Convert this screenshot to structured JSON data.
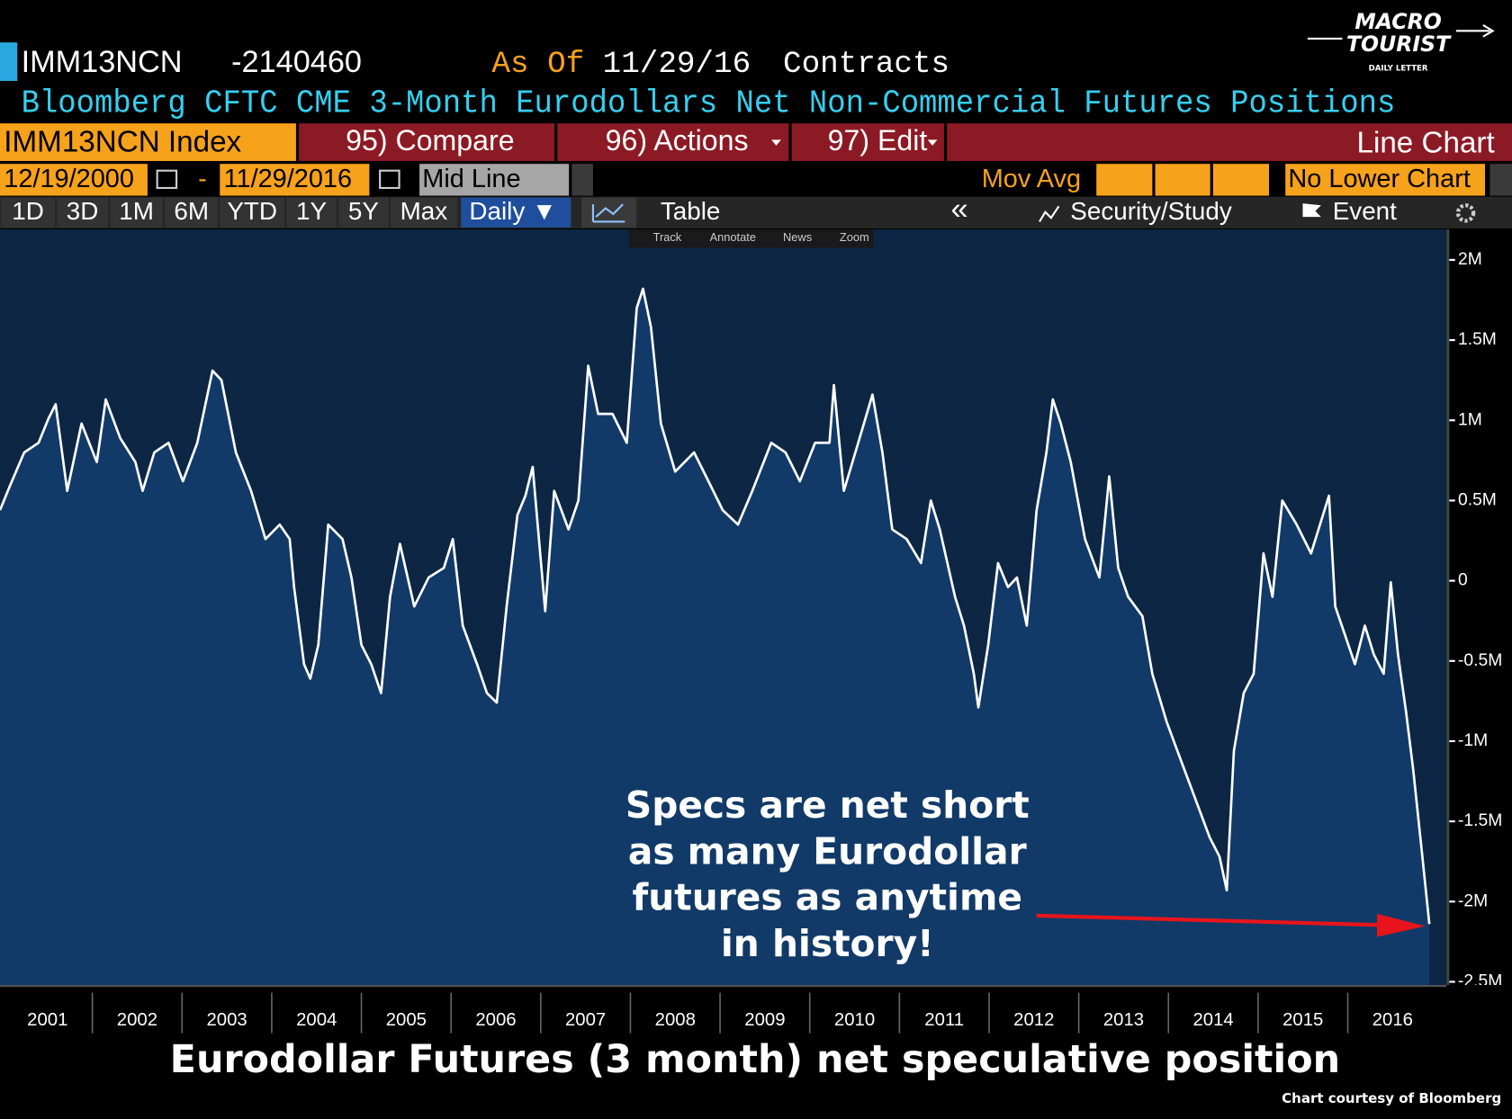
{
  "ui": {
    "logo": {
      "line1": "MACRO",
      "line2": "TOURIST",
      "line3": "DAILY LETTER"
    },
    "header": {
      "ticker": "IMM13NCN",
      "value": -2140460,
      "as_of_label": "As Of",
      "as_of": "11/29/16",
      "units": "Contracts",
      "description": "Bloomberg CFTC CME 3-Month Eurodollars Net Non-Commercial Futures Positions"
    },
    "menu": {
      "security": "IMM13NCN Index",
      "compare": "95) Compare",
      "actions": "96) Actions",
      "edit": "97) Edit",
      "chart_type": "Line Chart"
    },
    "range": {
      "start": "12/19/2000",
      "separator": "-",
      "end": "11/29/2016",
      "mode": "Mid Line",
      "mov_avg": "Mov Avg",
      "lower": "No Lower Chart"
    },
    "periods": [
      "1D",
      "3D",
      "1M",
      "6M",
      "YTD",
      "1Y",
      "5Y",
      "Max"
    ],
    "frequency": "Daily ▼",
    "table": "Table",
    "collapse": "«",
    "study": "Security/Study",
    "event": "Event",
    "tools": [
      "Track",
      "Annotate",
      "News",
      "Zoom"
    ]
  },
  "chart_data": {
    "type": "line",
    "title": "Eurodollar Futures (3 month) net speculative position",
    "annotation": [
      "Specs are net short",
      "as many Eurodollar",
      "futures as anytime",
      "in history!"
    ],
    "source": "Chart courtesy of Bloomberg",
    "xlim": [
      2000.97,
      2017.1
    ],
    "xticks": [
      2001,
      2002,
      2003,
      2004,
      2005,
      2006,
      2007,
      2008,
      2009,
      2010,
      2011,
      2012,
      2013,
      2014,
      2015,
      2016
    ],
    "ylim": [
      -2520000,
      2190000
    ],
    "yticks": [
      {
        "value": 2000000,
        "label": "2M"
      },
      {
        "value": 1500000,
        "label": "1.5M"
      },
      {
        "value": 1000000,
        "label": "1M"
      },
      {
        "value": 500000,
        "label": "0.5M"
      },
      0,
      {
        "value": -500000,
        "label": "-0.5M"
      },
      {
        "value": -1000000,
        "label": "-1M"
      },
      {
        "value": -1500000,
        "label": "-1.5M"
      },
      {
        "value": -2000000,
        "label": "-2M"
      },
      {
        "value": -2500000,
        "label": "-2.5M"
      }
    ],
    "series": [
      {
        "color": "#ffffff",
        "fill": "#113a68",
        "x": [
          2000.97,
          2001.08,
          2001.24,
          2001.4,
          2001.51,
          2001.59,
          2001.72,
          2001.88,
          2002.05,
          2002.15,
          2002.31,
          2002.48,
          2002.56,
          2002.69,
          2002.85,
          2003.01,
          2003.17,
          2003.34,
          2003.44,
          2003.6,
          2003.77,
          2003.93,
          2004.09,
          2004.2,
          2004.25,
          2004.36,
          2004.43,
          2004.52,
          2004.63,
          2004.79,
          2004.89,
          2005.0,
          2005.11,
          2005.22,
          2005.32,
          2005.43,
          2005.59,
          2005.75,
          2005.92,
          2006.02,
          2006.13,
          2006.29,
          2006.4,
          2006.51,
          2006.62,
          2006.74,
          2006.83,
          2006.91,
          2007.05,
          2007.15,
          2007.31,
          2007.42,
          2007.53,
          2007.64,
          2007.8,
          2007.96,
          2008.07,
          2008.14,
          2008.23,
          2008.34,
          2008.5,
          2008.71,
          2008.87,
          2009.03,
          2009.2,
          2009.36,
          2009.57,
          2009.73,
          2009.89,
          2010.06,
          2010.22,
          2010.27,
          2010.38,
          2010.54,
          2010.7,
          2010.81,
          2010.92,
          2011.08,
          2011.24,
          2011.35,
          2011.45,
          2011.62,
          2011.72,
          2011.83,
          2011.88,
          2011.99,
          2012.1,
          2012.21,
          2012.31,
          2012.42,
          2012.53,
          2012.64,
          2012.71,
          2012.8,
          2012.91,
          2013.07,
          2013.23,
          2013.34,
          2013.44,
          2013.55,
          2013.71,
          2013.82,
          2013.98,
          2014.14,
          2014.3,
          2014.46,
          2014.57,
          2014.65,
          2014.73,
          2014.84,
          2014.95,
          2015.06,
          2015.16,
          2015.27,
          2015.43,
          2015.59,
          2015.79,
          2015.86,
          2015.97,
          2016.08,
          2016.19,
          2016.29,
          2016.4,
          2016.48,
          2016.56,
          2016.65,
          2016.73,
          2016.82,
          2016.91
        ],
        "values": [
          440000,
          590000,
          800000,
          860000,
          1010000,
          1100000,
          560000,
          980000,
          740000,
          1130000,
          890000,
          740000,
          560000,
          800000,
          860000,
          620000,
          860000,
          1310000,
          1250000,
          800000,
          560000,
          260000,
          350000,
          260000,
          -40000,
          -520000,
          -610000,
          -400000,
          350000,
          260000,
          20000,
          -400000,
          -520000,
          -700000,
          -100000,
          230000,
          -160000,
          20000,
          80000,
          260000,
          -280000,
          -520000,
          -700000,
          -760000,
          -160000,
          410000,
          530000,
          710000,
          -190000,
          560000,
          320000,
          500000,
          1340000,
          1040000,
          1040000,
          860000,
          1700000,
          1820000,
          1580000,
          980000,
          680000,
          800000,
          620000,
          440000,
          350000,
          560000,
          860000,
          800000,
          620000,
          860000,
          860000,
          1220000,
          560000,
          860000,
          1160000,
          800000,
          320000,
          260000,
          110000,
          500000,
          320000,
          -100000,
          -280000,
          -580000,
          -790000,
          -400000,
          110000,
          -40000,
          20000,
          -280000,
          440000,
          800000,
          1130000,
          980000,
          740000,
          260000,
          20000,
          650000,
          80000,
          -100000,
          -220000,
          -580000,
          -880000,
          -1120000,
          -1360000,
          -1600000,
          -1720000,
          -1930000,
          -1060000,
          -700000,
          -580000,
          170000,
          -100000,
          500000,
          350000,
          170000,
          530000,
          -160000,
          -340000,
          -520000,
          -280000,
          -460000,
          -580000,
          -10000,
          -460000,
          -820000,
          -1180000,
          -1660000,
          -2140460
        ]
      }
    ]
  }
}
